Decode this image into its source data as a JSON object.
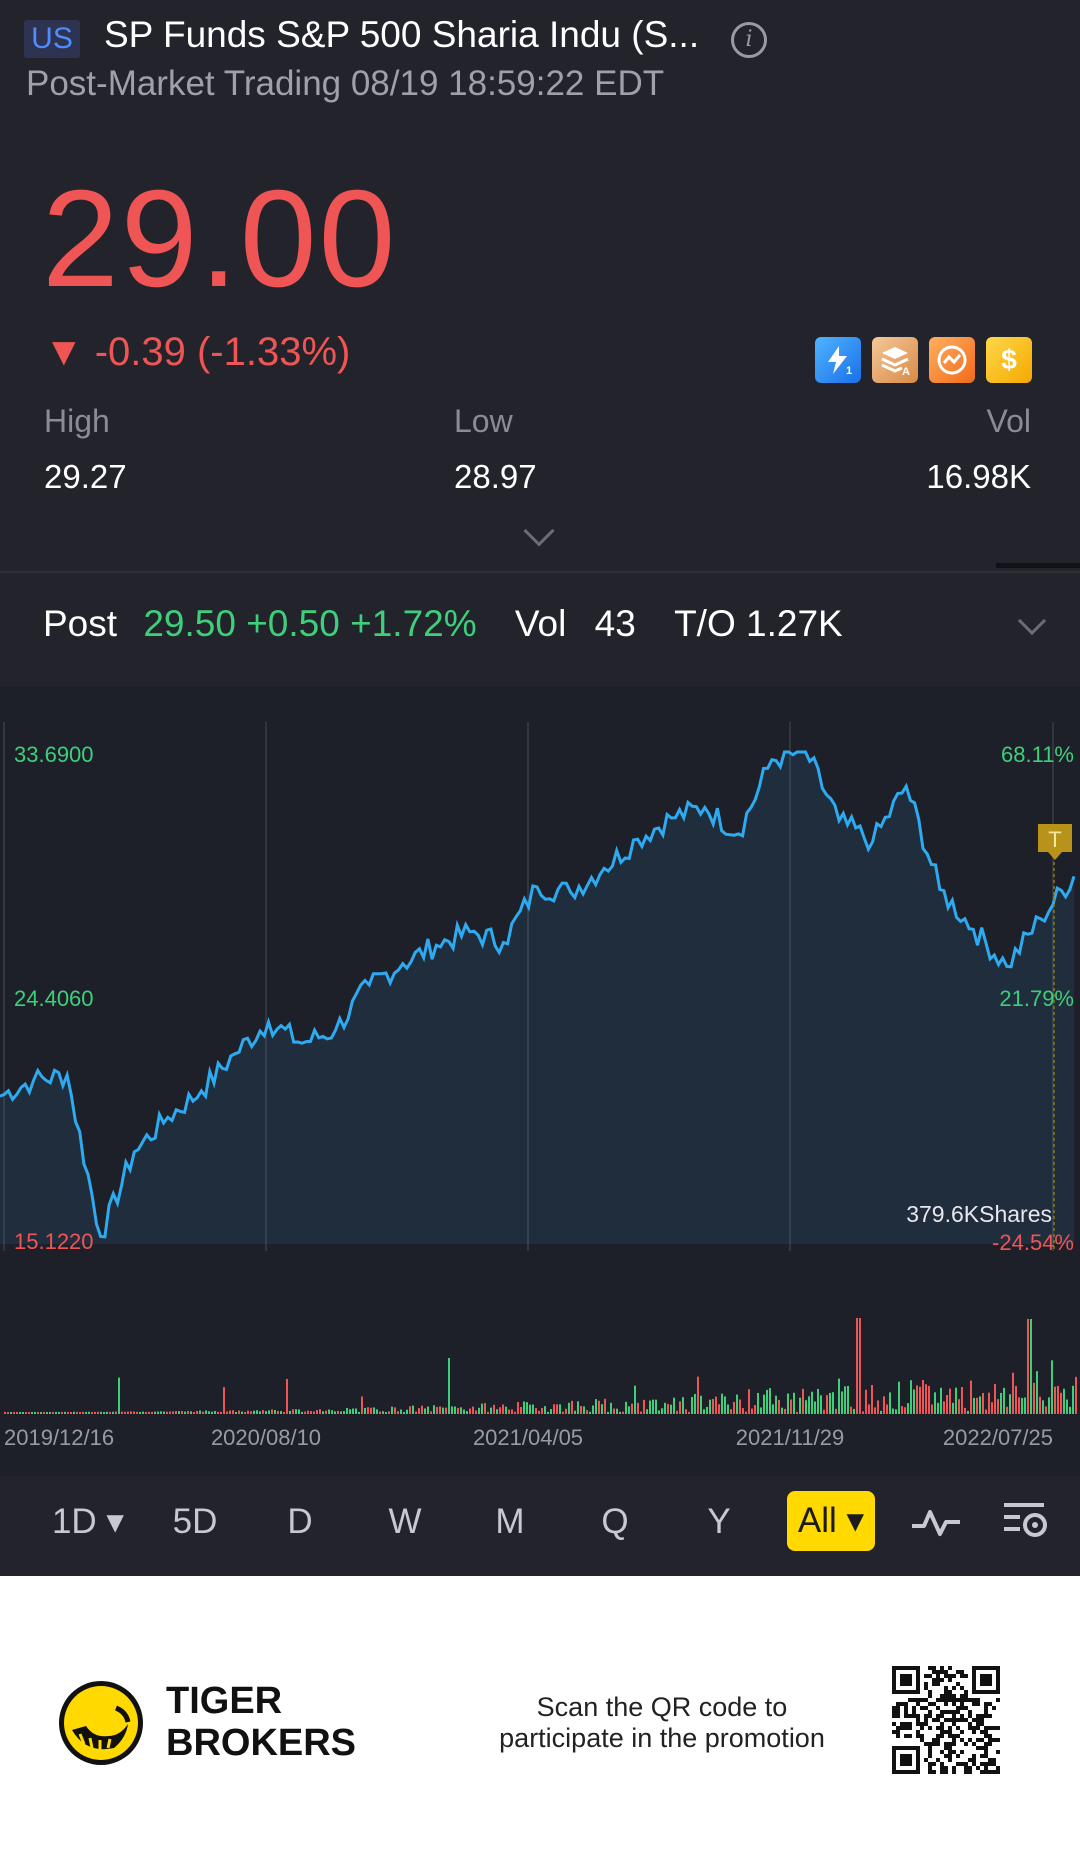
{
  "header": {
    "market_badge": "US",
    "title": "SP Funds S&P 500 Sharia Indu (S...",
    "subtitle": "Post-Market Trading 08/19 18:59:22 EDT"
  },
  "quote": {
    "price": "29.00",
    "change": "▼ -0.39 (-1.33%)",
    "color_down": "#f05555",
    "color_up": "#3ecf7a"
  },
  "feature_badges": [
    "lightning-1-icon",
    "layers-a-icon",
    "swap-circle-icon",
    "dollar-icon"
  ],
  "stats": {
    "high_label": "High",
    "high_value": "29.27",
    "low_label": "Low",
    "low_value": "28.97",
    "vol_label": "Vol",
    "vol_value": "16.98K"
  },
  "post_market": {
    "label": "Post",
    "quote": "29.50 +0.50 +1.72%",
    "vol_label": "Vol",
    "vol_value": "43",
    "turnover": "T/O 1.27K"
  },
  "chart": {
    "y_max_label": "33.6900",
    "y_mid_label": "24.4060",
    "y_min_label": "15.1220",
    "pct_max_label": "68.11%",
    "pct_mid_label": "21.79%",
    "pct_min_label": "-24.54%",
    "volume_label": "379.6KShares",
    "marker_label": "T",
    "x_labels": [
      "2019/12/16",
      "2020/08/10",
      "2021/04/05",
      "2021/11/29",
      "2022/07/25"
    ],
    "line_color": "#2eaaf0",
    "vol_up_color": "#3ecf7a",
    "vol_down_color": "#f05555"
  },
  "chart_data": {
    "type": "line",
    "x": [
      "2019/12/16",
      "2020/01",
      "2020/02",
      "2020/03",
      "2020/04",
      "2020/05",
      "2020/06",
      "2020/07",
      "2020/08/10",
      "2020/09",
      "2020/10",
      "2020/11",
      "2020/12",
      "2021/01",
      "2021/02",
      "2021/03",
      "2021/04/05",
      "2021/05",
      "2021/06",
      "2021/07",
      "2021/08",
      "2021/09",
      "2021/10",
      "2021/11/29",
      "2021/12",
      "2022/01",
      "2022/02",
      "2022/03",
      "2022/04",
      "2022/05",
      "2022/06",
      "2022/07/25",
      "2022/08"
    ],
    "values": [
      20.7,
      21.3,
      21.5,
      15.4,
      18.6,
      19.9,
      20.9,
      22.3,
      23.5,
      22.7,
      23.2,
      24.9,
      25.7,
      26.4,
      26.9,
      26.5,
      28.6,
      28.4,
      29.3,
      30.4,
      31.2,
      31.6,
      30.6,
      33.4,
      33.7,
      31.1,
      30.3,
      32.4,
      28.5,
      27.0,
      25.6,
      27.4,
      29.0
    ],
    "ylim": [
      15.122,
      33.69
    ],
    "xlabel": "",
    "ylabel": ""
  },
  "timeframes": [
    "1D ▾",
    "5D",
    "D",
    "W",
    "M",
    "Q",
    "Y",
    "All ▾"
  ],
  "toolbar_icons": [
    "indicator-wave-icon",
    "chart-settings-icon"
  ],
  "footer": {
    "brand_line1": "TIGER",
    "brand_line2": "BROKERS",
    "promo_line1": "Scan the QR code to",
    "promo_line2": "participate in the promotion"
  }
}
